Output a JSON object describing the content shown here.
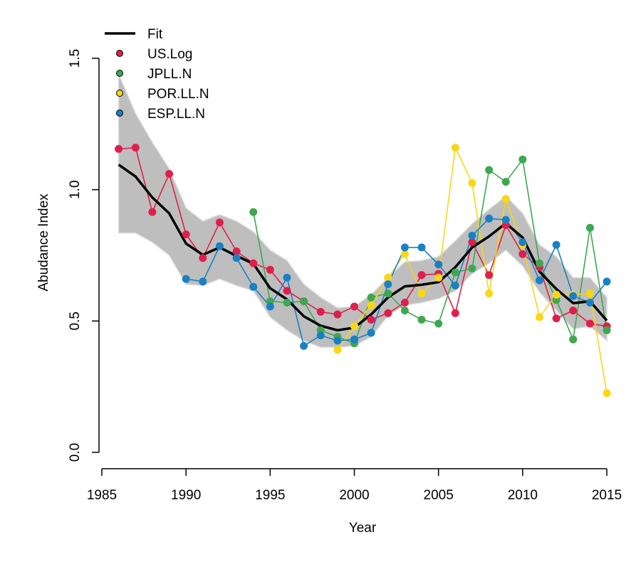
{
  "chart_data": {
    "type": "line",
    "xlabel": "Year",
    "ylabel": "Abudance Index",
    "xlim": [
      1985,
      2015
    ],
    "ylim": [
      0,
      1.5
    ],
    "x_ticks": [
      "1985",
      "1990",
      "1995",
      "2000",
      "2005",
      "2010",
      "2015"
    ],
    "y_ticks": [
      "0.0",
      "0.5",
      "1.0",
      "1.5"
    ],
    "legend_position": "top-left",
    "grid": false,
    "x": [
      1986,
      1987,
      1988,
      1989,
      1990,
      1991,
      1992,
      1993,
      1994,
      1995,
      1996,
      1997,
      1998,
      1999,
      2000,
      2001,
      2002,
      2003,
      2004,
      2005,
      2006,
      2007,
      2008,
      2009,
      2010,
      2011,
      2012,
      2013,
      2014,
      2015
    ],
    "fit": {
      "name": "Fit",
      "color": "#000000",
      "values": [
        1.095,
        1.05,
        0.97,
        0.91,
        0.795,
        0.752,
        0.78,
        0.748,
        0.718,
        0.625,
        0.582,
        0.518,
        0.482,
        0.465,
        0.475,
        0.525,
        0.59,
        0.632,
        0.638,
        0.648,
        0.705,
        0.78,
        0.822,
        0.872,
        0.818,
        0.688,
        0.622,
        0.568,
        0.575,
        0.502
      ],
      "band_upper": [
        1.44,
        1.29,
        1.18,
        1.08,
        0.93,
        0.88,
        0.905,
        0.88,
        0.84,
        0.77,
        0.73,
        0.64,
        0.59,
        0.55,
        0.555,
        0.6,
        0.665,
        0.725,
        0.73,
        0.745,
        0.805,
        0.87,
        0.925,
        0.975,
        0.91,
        0.79,
        0.745,
        0.665,
        0.665,
        0.59
      ],
      "band_lower": [
        0.835,
        0.835,
        0.8,
        0.75,
        0.64,
        0.635,
        0.66,
        0.635,
        0.615,
        0.515,
        0.465,
        0.425,
        0.4,
        0.4,
        0.405,
        0.44,
        0.52,
        0.56,
        0.57,
        0.585,
        0.615,
        0.68,
        0.72,
        0.77,
        0.71,
        0.61,
        0.54,
        0.47,
        0.48,
        0.425
      ]
    },
    "series": [
      {
        "name": "US.Log",
        "color": "#DF1F4B",
        "values": [
          1.155,
          1.16,
          0.915,
          1.06,
          0.83,
          0.74,
          0.875,
          0.765,
          0.72,
          0.695,
          0.615,
          0.575,
          0.535,
          0.525,
          0.555,
          0.505,
          0.53,
          0.57,
          0.675,
          0.68,
          0.53,
          0.8,
          0.675,
          0.865,
          0.755,
          0.705,
          0.51,
          0.54,
          0.49,
          0.48
        ]
      },
      {
        "name": "JPLL.N",
        "color": "#3DA84F",
        "values": [
          null,
          null,
          null,
          null,
          null,
          null,
          null,
          null,
          0.915,
          0.575,
          0.57,
          0.575,
          0.465,
          0.44,
          0.415,
          0.59,
          0.605,
          0.54,
          0.505,
          0.49,
          0.685,
          0.7,
          1.075,
          1.03,
          1.115,
          0.72,
          0.58,
          0.43,
          0.855,
          0.465
        ]
      },
      {
        "name": "POR.LL.N",
        "color": "#F9D714",
        "values": [
          null,
          null,
          null,
          null,
          null,
          null,
          null,
          null,
          null,
          null,
          null,
          null,
          null,
          0.39,
          0.48,
          0.56,
          0.665,
          0.755,
          0.605,
          0.665,
          1.16,
          1.025,
          0.605,
          0.965,
          0.79,
          0.515,
          0.6,
          0.6,
          0.605,
          0.225
        ]
      },
      {
        "name": "ESP.LL.N",
        "color": "#1A80C4",
        "values": [
          null,
          null,
          null,
          null,
          0.66,
          0.65,
          0.785,
          0.74,
          0.63,
          0.555,
          0.665,
          0.405,
          0.445,
          0.425,
          0.43,
          0.455,
          0.64,
          0.78,
          0.78,
          0.715,
          0.635,
          0.825,
          0.89,
          0.885,
          0.8,
          0.655,
          0.79,
          0.595,
          0.57,
          0.65
        ]
      }
    ]
  }
}
